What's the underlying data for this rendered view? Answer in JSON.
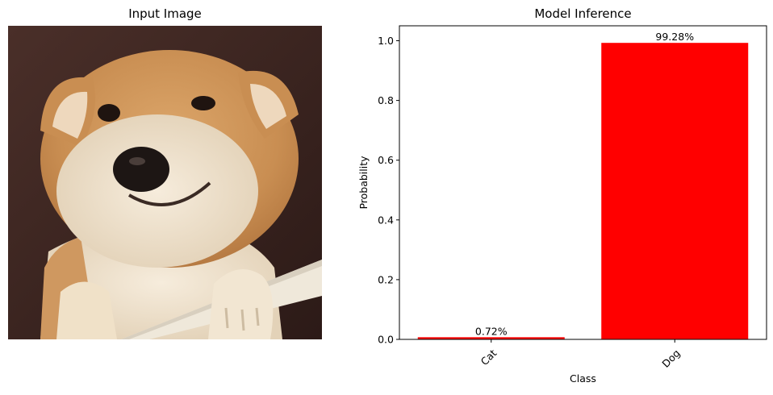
{
  "left_panel": {
    "title": "Input Image",
    "image": {
      "subject": "shiba-inu-dog",
      "colors": {
        "background": "#3b2520",
        "fur_orange": "#d39a5e",
        "fur_cream": "#efe2cc",
        "rail": "#efe8da"
      }
    }
  },
  "chart_data": {
    "type": "bar",
    "title": "Model Inference",
    "xlabel": "Class",
    "ylabel": "Probability",
    "categories": [
      "Cat",
      "Dog"
    ],
    "values": [
      0.0072,
      0.9928
    ],
    "data_labels": [
      "0.72%",
      "99.28%"
    ],
    "ylim": [
      0,
      1.05
    ],
    "yticks": [
      0.0,
      0.2,
      0.4,
      0.6,
      0.8,
      1.0
    ],
    "ytick_labels": [
      "0.0",
      "0.2",
      "0.4",
      "0.6",
      "0.8",
      "1.0"
    ],
    "xtick_rotation": 45,
    "bar_color": "#ff0000",
    "grid": false,
    "legend": false
  }
}
